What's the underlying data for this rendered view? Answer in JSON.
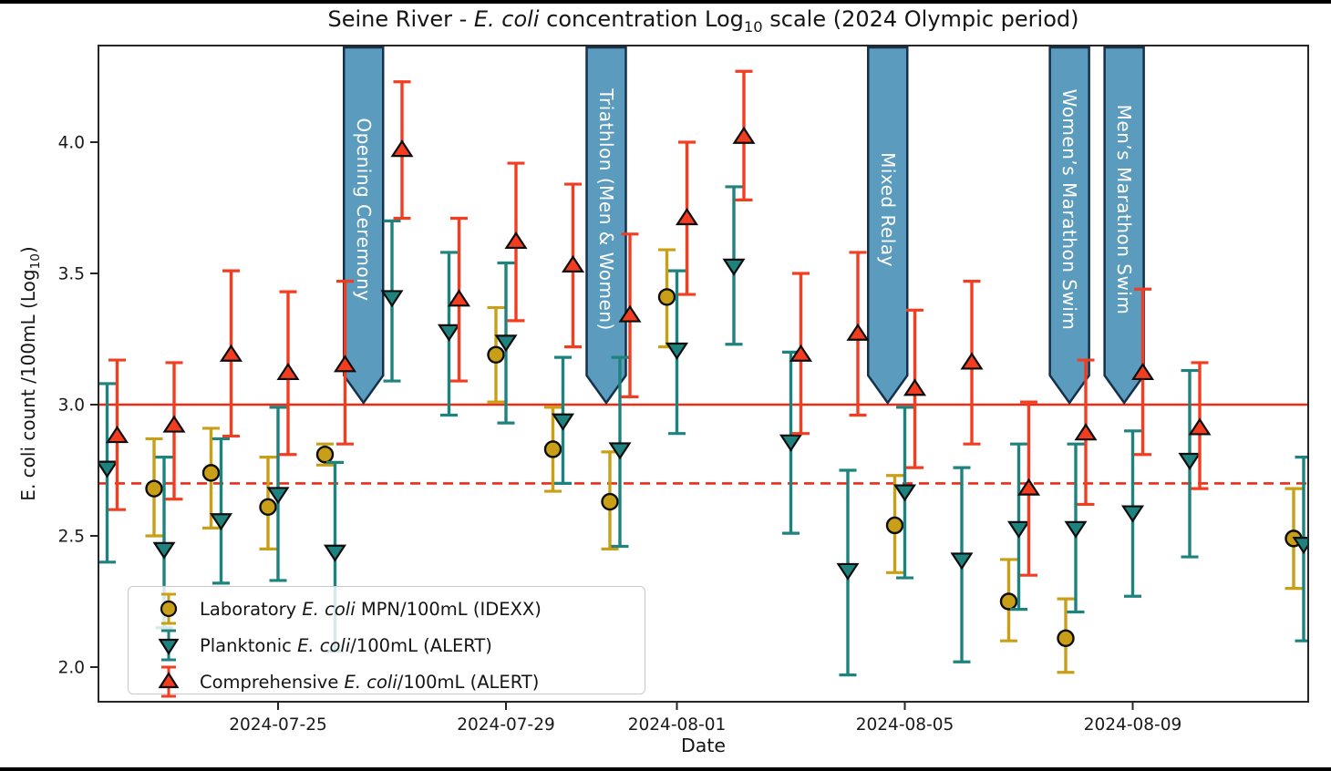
{
  "figure": {
    "title": {
      "prefix": "Seine River - ",
      "italic": "E. coli",
      "middle": " concentration Log",
      "sub": "10",
      "suffix": " scale (2024 Olympic period)"
    },
    "xlabel": "Date",
    "ylabel": {
      "italic": "E. coli",
      "middle": " count /100mL (Log",
      "sub": "10",
      "suffix": ")"
    }
  },
  "legend": {
    "items": [
      {
        "prefix": "Laboratory ",
        "italic": "E. coli",
        "suffix": " MPN/100mL (IDEXX)"
      },
      {
        "prefix": "Planktonic ",
        "italic": "E. coli",
        "suffix": "/100mL (ALERT)"
      },
      {
        "prefix": "Comprehensive ",
        "italic": "E. coli",
        "suffix": "/100mL (ALERT)"
      }
    ]
  },
  "chart_data": {
    "type": "scatter",
    "title": "Seine River - E. coli concentration Log10 scale (2024 Olympic period)",
    "xlabel": "Date",
    "ylabel": "E. coli count /100mL (Log10)",
    "grid": false,
    "legend_position": "lower-left",
    "x_axis": {
      "day0_date": "2024-07-22",
      "range_days": [
        -0.152,
        21.08
      ],
      "ticks": [
        {
          "day": 3,
          "label": "2024-07-25"
        },
        {
          "day": 7,
          "label": "2024-07-29"
        },
        {
          "day": 10,
          "label": "2024-08-01"
        },
        {
          "day": 14,
          "label": "2024-08-05"
        },
        {
          "day": 18,
          "label": "2024-08-09"
        }
      ]
    },
    "y_axis": {
      "range": [
        1.87,
        4.37
      ],
      "ticks": [
        {
          "v": 2.0,
          "label": "2.0"
        },
        {
          "v": 2.5,
          "label": "2.5"
        },
        {
          "v": 3.0,
          "label": "3.0"
        },
        {
          "v": 3.5,
          "label": "3.5"
        },
        {
          "v": 4.0,
          "label": "4.0"
        }
      ]
    },
    "reference_lines": [
      {
        "y": 3.0,
        "style": "solid",
        "color": "#ee2b16"
      },
      {
        "y": 2.7,
        "style": "dashed",
        "color": "#ee2b16"
      }
    ],
    "annotation_style": {
      "fill": "#5b9cbe",
      "edge": "#15304a",
      "text_color": "#ffffff"
    },
    "annotations": [
      {
        "label": "Opening Ceremony",
        "day": 4.5
      },
      {
        "label": "Triathlon (Men & Women)",
        "day": 8.76
      },
      {
        "label": "Mixed Relay",
        "day": 13.7
      },
      {
        "label": "Women’s Marathon Swim",
        "day": 16.89
      },
      {
        "label": "Men’s Marathon Swim",
        "day": 17.85
      }
    ],
    "series": [
      {
        "id": "laboratory",
        "name": "Laboratory E. coli MPN/100mL (IDEXX)",
        "marker": "circle",
        "color": "#c99f17",
        "edge": "#0d0d0d",
        "dx": -11,
        "points": [
          {
            "date": "2024-07-23",
            "day": 1,
            "y": 2.68,
            "lo": 2.5,
            "hi": 2.87
          },
          {
            "date": "2024-07-24",
            "day": 2,
            "y": 2.74,
            "lo": 2.53,
            "hi": 2.91
          },
          {
            "date": "2024-07-25",
            "day": 3,
            "y": 2.61,
            "lo": 2.45,
            "hi": 2.8
          },
          {
            "date": "2024-07-26",
            "day": 4,
            "y": 2.81,
            "lo": 2.77,
            "hi": 2.85
          },
          {
            "date": "2024-07-29",
            "day": 7,
            "y": 3.19,
            "lo": 3.01,
            "hi": 3.37
          },
          {
            "date": "2024-07-30",
            "day": 8,
            "y": 2.83,
            "lo": 2.67,
            "hi": 2.99
          },
          {
            "date": "2024-07-31",
            "day": 9,
            "y": 2.63,
            "lo": 2.45,
            "hi": 2.82
          },
          {
            "date": "2024-08-01",
            "day": 10,
            "y": 3.41,
            "lo": 3.22,
            "hi": 3.59
          },
          {
            "date": "2024-08-05",
            "day": 14,
            "y": 2.54,
            "lo": 2.36,
            "hi": 2.73
          },
          {
            "date": "2024-08-07",
            "day": 16,
            "y": 2.25,
            "lo": 2.1,
            "hi": 2.41
          },
          {
            "date": "2024-08-08",
            "day": 17,
            "y": 2.11,
            "lo": 1.98,
            "hi": 2.26
          },
          {
            "date": "2024-08-12",
            "day": 21,
            "y": 2.49,
            "lo": 2.3,
            "hi": 2.68
          }
        ]
      },
      {
        "id": "planktonic",
        "name": "Planktonic E. coli/100mL (ALERT)",
        "marker": "triangle-down",
        "color": "#1e827e",
        "edge": "#0d0d0d",
        "dx": 0,
        "points": [
          {
            "date": "2024-07-22",
            "day": 0,
            "y": 2.76,
            "lo": 2.4,
            "hi": 3.08
          },
          {
            "date": "2024-07-23",
            "day": 1,
            "y": 2.45,
            "lo": 2.15,
            "hi": 2.8
          },
          {
            "date": "2024-07-24",
            "day": 2,
            "y": 2.56,
            "lo": 2.32,
            "hi": 2.87
          },
          {
            "date": "2024-07-25",
            "day": 3,
            "y": 2.66,
            "lo": 2.33,
            "hi": 2.99
          },
          {
            "date": "2024-07-26",
            "day": 4,
            "y": 2.44,
            "lo": 2.06,
            "hi": 2.78
          },
          {
            "date": "2024-07-27",
            "day": 5,
            "y": 3.41,
            "lo": 3.09,
            "hi": 3.7
          },
          {
            "date": "2024-07-28",
            "day": 6,
            "y": 3.28,
            "lo": 2.96,
            "hi": 3.58
          },
          {
            "date": "2024-07-29",
            "day": 7,
            "y": 3.24,
            "lo": 2.93,
            "hi": 3.54
          },
          {
            "date": "2024-07-30",
            "day": 8,
            "y": 2.94,
            "lo": 2.7,
            "hi": 3.18
          },
          {
            "date": "2024-07-31",
            "day": 9,
            "y": 2.83,
            "lo": 2.46,
            "hi": 3.18
          },
          {
            "date": "2024-08-01",
            "day": 10,
            "y": 3.21,
            "lo": 2.89,
            "hi": 3.51
          },
          {
            "date": "2024-08-02",
            "day": 11,
            "y": 3.53,
            "lo": 3.23,
            "hi": 3.83
          },
          {
            "date": "2024-08-03",
            "day": 12,
            "y": 2.86,
            "lo": 2.51,
            "hi": 3.2
          },
          {
            "date": "2024-08-04",
            "day": 13,
            "y": 2.37,
            "lo": 1.97,
            "hi": 2.75
          },
          {
            "date": "2024-08-05",
            "day": 14,
            "y": 2.67,
            "lo": 2.34,
            "hi": 2.99
          },
          {
            "date": "2024-08-06",
            "day": 15,
            "y": 2.41,
            "lo": 2.02,
            "hi": 2.76
          },
          {
            "date": "2024-08-07",
            "day": 16,
            "y": 2.53,
            "lo": 2.22,
            "hi": 2.85
          },
          {
            "date": "2024-08-08",
            "day": 17,
            "y": 2.53,
            "lo": 2.21,
            "hi": 2.85
          },
          {
            "date": "2024-08-09",
            "day": 18,
            "y": 2.59,
            "lo": 2.27,
            "hi": 2.9
          },
          {
            "date": "2024-08-10",
            "day": 19,
            "y": 2.79,
            "lo": 2.42,
            "hi": 3.13
          },
          {
            "date": "2024-08-12",
            "day": 21,
            "y": 2.47,
            "lo": 2.1,
            "hi": 2.8
          }
        ]
      },
      {
        "id": "comprehensive",
        "name": "Comprehensive E. coli/100mL (ALERT)",
        "marker": "triangle-up",
        "color": "#f23d21",
        "edge": "#0d0d0d",
        "dx": 11,
        "points": [
          {
            "date": "2024-07-22",
            "day": 0,
            "y": 2.88,
            "lo": 2.6,
            "hi": 3.17
          },
          {
            "date": "2024-07-23",
            "day": 1,
            "y": 2.92,
            "lo": 2.64,
            "hi": 3.16
          },
          {
            "date": "2024-07-24",
            "day": 2,
            "y": 3.19,
            "lo": 2.88,
            "hi": 3.51
          },
          {
            "date": "2024-07-25",
            "day": 3,
            "y": 3.12,
            "lo": 2.81,
            "hi": 3.43
          },
          {
            "date": "2024-07-26",
            "day": 4,
            "y": 3.15,
            "lo": 2.85,
            "hi": 3.47
          },
          {
            "date": "2024-07-27",
            "day": 5,
            "y": 3.97,
            "lo": 3.71,
            "hi": 4.23
          },
          {
            "date": "2024-07-28",
            "day": 6,
            "y": 3.4,
            "lo": 3.09,
            "hi": 3.71
          },
          {
            "date": "2024-07-29",
            "day": 7,
            "y": 3.62,
            "lo": 3.32,
            "hi": 3.92
          },
          {
            "date": "2024-07-30",
            "day": 8,
            "y": 3.53,
            "lo": 3.22,
            "hi": 3.84
          },
          {
            "date": "2024-07-31",
            "day": 9,
            "y": 3.34,
            "lo": 3.03,
            "hi": 3.65
          },
          {
            "date": "2024-08-01",
            "day": 10,
            "y": 3.71,
            "lo": 3.42,
            "hi": 4.0
          },
          {
            "date": "2024-08-02",
            "day": 11,
            "y": 4.02,
            "lo": 3.78,
            "hi": 4.27
          },
          {
            "date": "2024-08-03",
            "day": 12,
            "y": 3.19,
            "lo": 2.89,
            "hi": 3.5
          },
          {
            "date": "2024-08-04",
            "day": 13,
            "y": 3.27,
            "lo": 2.96,
            "hi": 3.58
          },
          {
            "date": "2024-08-05",
            "day": 14,
            "y": 3.06,
            "lo": 2.76,
            "hi": 3.36
          },
          {
            "date": "2024-08-06",
            "day": 15,
            "y": 3.16,
            "lo": 2.85,
            "hi": 3.47
          },
          {
            "date": "2024-08-07",
            "day": 16,
            "y": 2.68,
            "lo": 2.35,
            "hi": 3.01
          },
          {
            "date": "2024-08-08",
            "day": 17,
            "y": 2.89,
            "lo": 2.62,
            "hi": 3.17
          },
          {
            "date": "2024-08-09",
            "day": 18,
            "y": 3.12,
            "lo": 2.81,
            "hi": 3.44
          },
          {
            "date": "2024-08-10",
            "day": 19,
            "y": 2.91,
            "lo": 2.68,
            "hi": 3.16
          }
        ]
      }
    ]
  }
}
